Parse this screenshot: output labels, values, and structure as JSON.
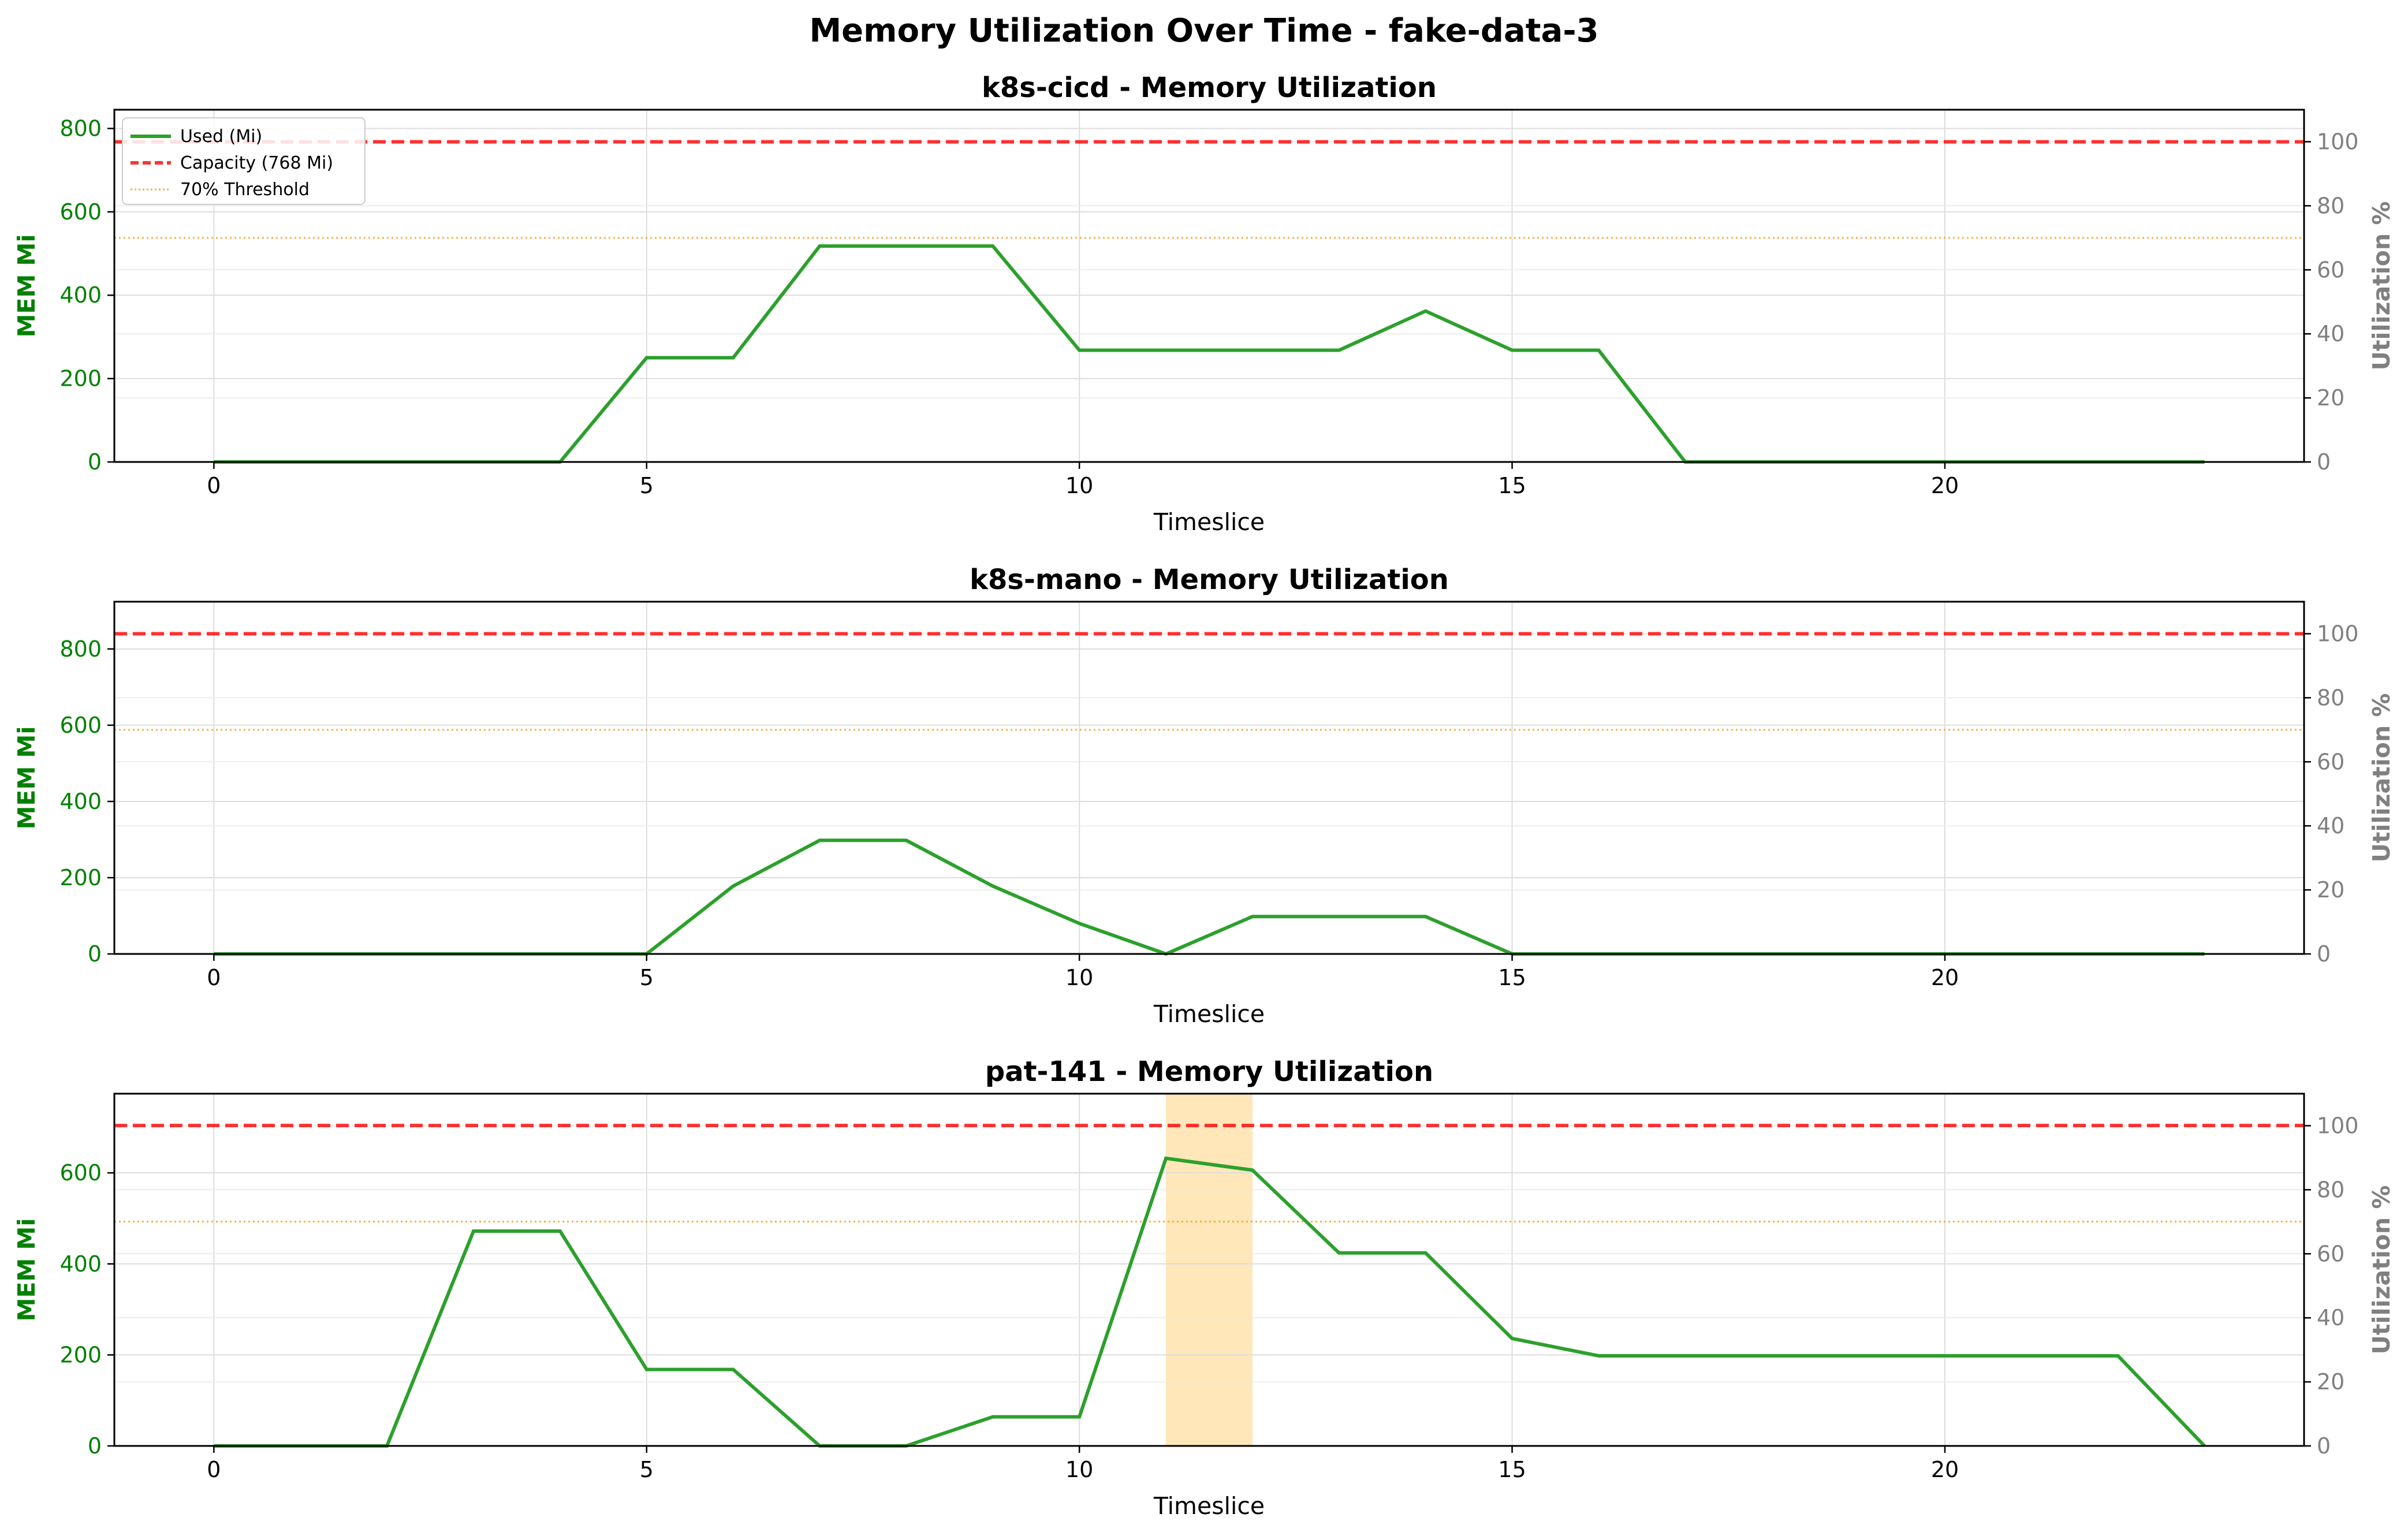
{
  "figure_title": "Memory Utilization Over Time - fake-data-3",
  "colors": {
    "used": "#2ca02c",
    "capacity": "#ff0000",
    "threshold": "#ff9f1a",
    "highlight": "#ffe4b3",
    "left_axis": "#008000",
    "right_axis": "#808080",
    "grid": "#dddddd"
  },
  "chart_data": [
    {
      "type": "line",
      "title": "k8s-cicd - Memory Utilization",
      "xlabel": "Timeslice",
      "ylabel": "MEM Mi",
      "y2label": "Utilization %",
      "x": [
        0,
        1,
        2,
        3,
        4,
        5,
        6,
        7,
        8,
        9,
        10,
        11,
        12,
        13,
        14,
        15,
        16,
        17,
        18,
        19,
        20,
        21,
        22,
        23
      ],
      "series": [
        {
          "name": "Used (Mi)",
          "values": [
            0,
            0,
            0,
            0,
            0,
            250,
            250,
            518,
            518,
            518,
            268,
            268,
            268,
            268,
            362,
            268,
            268,
            0,
            0,
            0,
            0,
            0,
            0,
            0
          ]
        }
      ],
      "capacity": 768,
      "threshold_pct": 70,
      "xlim": [
        -1.15,
        24.15
      ],
      "xticks": [
        0,
        5,
        10,
        15,
        20
      ],
      "ylim": [
        0,
        845
      ],
      "yticks": [
        0,
        200,
        400,
        600,
        800
      ],
      "y2lim": [
        0,
        110
      ],
      "y2ticks": [
        0,
        20,
        40,
        60,
        80,
        100
      ],
      "highlight": null,
      "legend": {
        "position": "upper-left",
        "entries": [
          {
            "label": "Used (Mi)",
            "style": "solid"
          },
          {
            "label": "Capacity (768 Mi)",
            "style": "dashed"
          },
          {
            "label": "70% Threshold",
            "style": "dotted"
          }
        ]
      },
      "grid": true
    },
    {
      "type": "line",
      "title": "k8s-mano - Memory Utilization",
      "xlabel": "Timeslice",
      "ylabel": "MEM Mi",
      "y2label": "Utilization %",
      "x": [
        0,
        1,
        2,
        3,
        4,
        5,
        6,
        7,
        8,
        9,
        10,
        11,
        12,
        13,
        14,
        15,
        16,
        17,
        18,
        19,
        20,
        21,
        22,
        23
      ],
      "series": [
        {
          "name": "Used (Mi)",
          "values": [
            0,
            0,
            0,
            0,
            0,
            0,
            178,
            298,
            298,
            178,
            80,
            0,
            98,
            98,
            98,
            0,
            0,
            0,
            0,
            0,
            0,
            0,
            0,
            0
          ]
        }
      ],
      "capacity": 840,
      "threshold_pct": 70,
      "xlim": [
        -1.15,
        24.15
      ],
      "xticks": [
        0,
        5,
        10,
        15,
        20
      ],
      "ylim": [
        0,
        924
      ],
      "yticks": [
        0,
        200,
        400,
        600,
        800
      ],
      "y2lim": [
        0,
        110
      ],
      "y2ticks": [
        0,
        20,
        40,
        60,
        80,
        100
      ],
      "highlight": null,
      "legend": null,
      "grid": true
    },
    {
      "type": "line",
      "title": "pat-141 - Memory Utilization",
      "xlabel": "Timeslice",
      "ylabel": "MEM Mi",
      "y2label": "Utilization %",
      "x": [
        0,
        1,
        2,
        3,
        4,
        5,
        6,
        7,
        8,
        9,
        10,
        11,
        12,
        13,
        14,
        15,
        16,
        17,
        18,
        19,
        20,
        21,
        22,
        23
      ],
      "series": [
        {
          "name": "Used (Mi)",
          "values": [
            0,
            0,
            0,
            472,
            472,
            168,
            168,
            0,
            0,
            64,
            64,
            632,
            606,
            424,
            424,
            236,
            198,
            198,
            198,
            198,
            198,
            198,
            198,
            0
          ]
        }
      ],
      "capacity": 704,
      "threshold_pct": 70,
      "xlim": [
        -1.15,
        24.15
      ],
      "xticks": [
        0,
        5,
        10,
        15,
        20
      ],
      "ylim": [
        0,
        774
      ],
      "yticks": [
        0,
        200,
        400,
        600
      ],
      "y2lim": [
        0,
        110
      ],
      "y2ticks": [
        0,
        20,
        40,
        60,
        80,
        100
      ],
      "highlight": [
        11,
        12
      ],
      "legend": null,
      "grid": true
    }
  ]
}
